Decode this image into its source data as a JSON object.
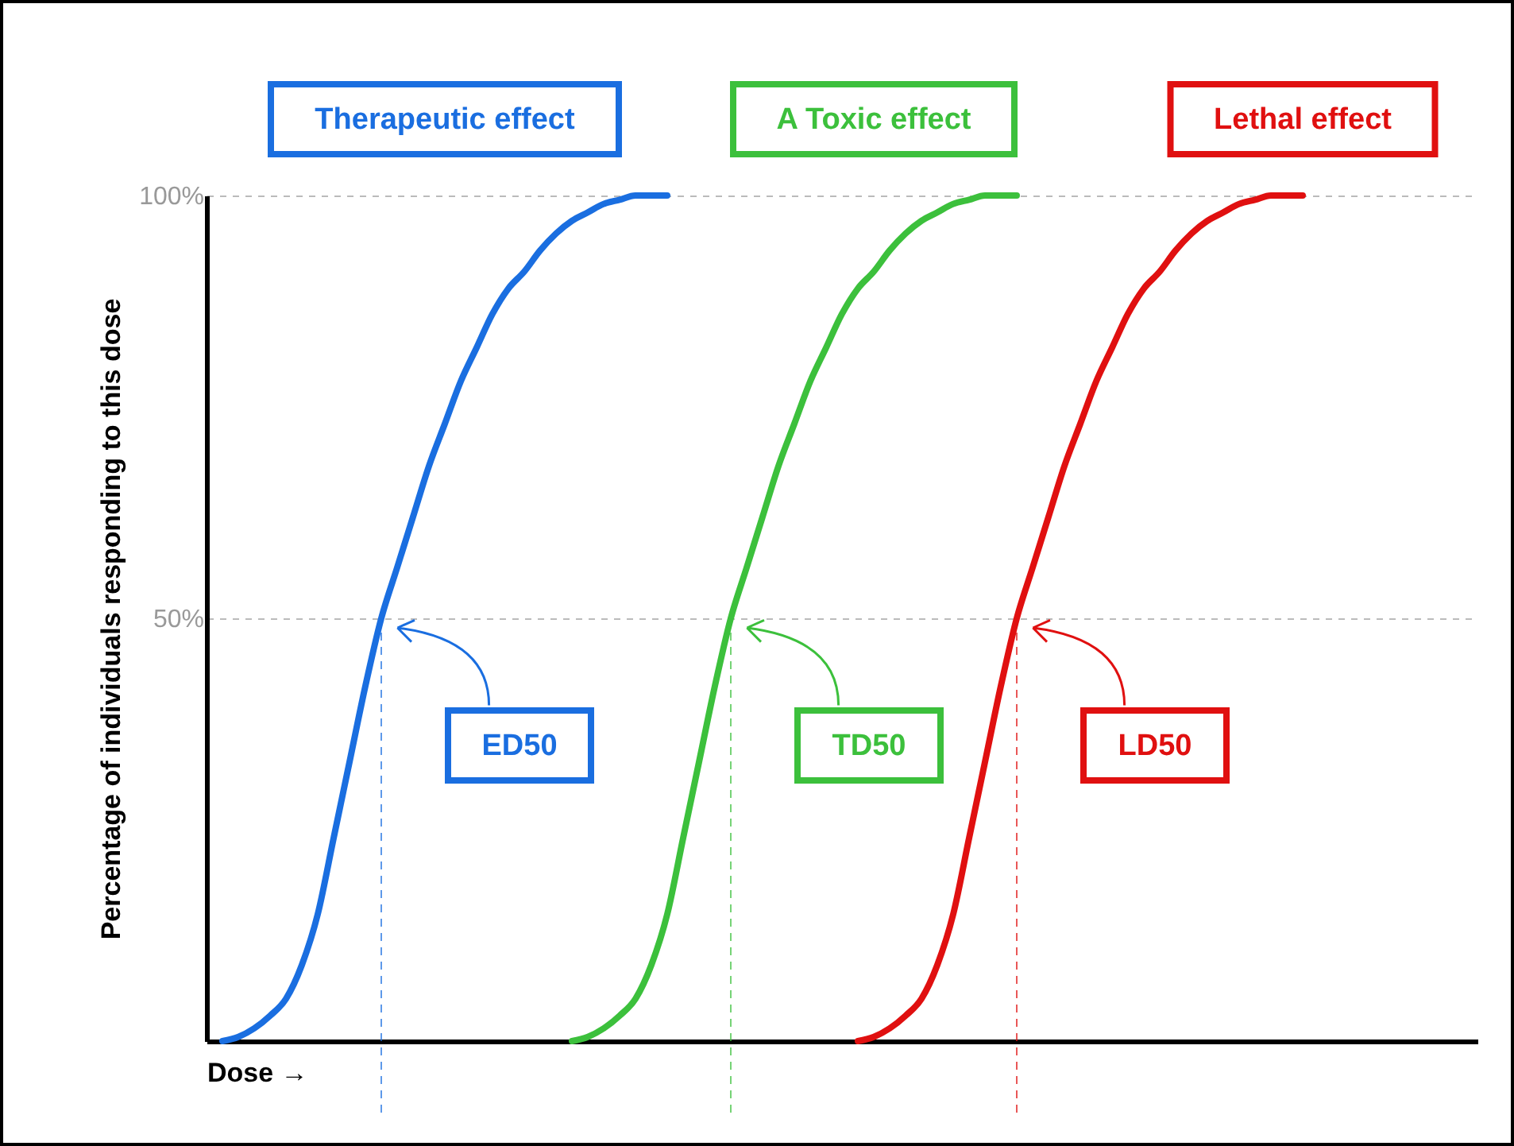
{
  "chart_data": {
    "type": "line",
    "xlabel": "Dose →",
    "ylabel": "Percentage of individuals responding to this dose",
    "categories": [
      null,
      null,
      null,
      null,
      null,
      null,
      null,
      null,
      null,
      null,
      null,
      null,
      null,
      null,
      null,
      null,
      null,
      null,
      null,
      null,
      null,
      null,
      null,
      null,
      null,
      null,
      null,
      null,
      null,
      null,
      null,
      null,
      null,
      null,
      null,
      null,
      null,
      null,
      null,
      null,
      null,
      null,
      null,
      null,
      null,
      null,
      null,
      null,
      null,
      null,
      null,
      null,
      null,
      null,
      null,
      null,
      null,
      null,
      null,
      null,
      null,
      null,
      null,
      null,
      null,
      null,
      null,
      null,
      null,
      null,
      null,
      null,
      null,
      null,
      null,
      null,
      null,
      null,
      null,
      null,
      null
    ],
    "series": [
      {
        "name": "Therapeutic effect",
        "color": "#1a6ee0",
        "values": [
          null,
          0,
          0.5,
          1.5,
          3,
          5,
          9,
          15,
          24,
          33,
          42,
          50,
          56,
          62,
          68,
          73,
          78,
          82,
          86,
          89,
          91,
          93.5,
          95.5,
          97,
          98,
          99,
          99.5,
          100,
          100,
          100,
          null,
          null,
          null,
          null,
          null,
          null,
          null,
          null,
          null,
          null,
          null,
          null,
          null,
          null,
          null,
          null,
          null,
          null,
          null,
          null,
          null,
          null,
          null,
          null,
          null,
          null,
          null,
          null,
          null,
          null,
          null,
          null,
          null,
          null,
          null,
          null,
          null,
          null,
          null,
          null,
          null,
          null,
          null,
          null,
          null,
          null,
          null,
          null,
          null,
          null,
          null
        ]
      },
      {
        "name": "A Toxic effect",
        "color": "#3cc03c",
        "values": [
          null,
          null,
          null,
          null,
          null,
          null,
          null,
          null,
          null,
          null,
          null,
          null,
          null,
          null,
          null,
          null,
          null,
          null,
          null,
          null,
          null,
          null,
          null,
          0,
          0.5,
          1.5,
          3,
          5,
          9,
          15,
          24,
          33,
          42,
          50,
          56,
          62,
          68,
          73,
          78,
          82,
          86,
          89,
          91,
          93.5,
          95.5,
          97,
          98,
          99,
          99.5,
          100,
          100,
          100,
          null,
          null,
          null,
          null,
          null,
          null,
          null,
          null,
          null,
          null,
          null,
          null,
          null,
          null,
          null,
          null,
          null,
          null,
          null,
          null,
          null,
          null,
          null,
          null,
          null,
          null,
          null,
          null,
          null
        ]
      },
      {
        "name": "Lethal effect",
        "color": "#e01010",
        "values": [
          null,
          null,
          null,
          null,
          null,
          null,
          null,
          null,
          null,
          null,
          null,
          null,
          null,
          null,
          null,
          null,
          null,
          null,
          null,
          null,
          null,
          null,
          null,
          null,
          null,
          null,
          null,
          null,
          null,
          null,
          null,
          null,
          null,
          null,
          null,
          null,
          null,
          null,
          null,
          null,
          null,
          0,
          0.5,
          1.5,
          3,
          5,
          9,
          15,
          24,
          33,
          42,
          50,
          56,
          62,
          68,
          73,
          78,
          82,
          86,
          89,
          91,
          93.5,
          95.5,
          97,
          98,
          99,
          99.5,
          100,
          100,
          100,
          null,
          null,
          null,
          null,
          null,
          null,
          null,
          null,
          null,
          null,
          null
        ]
      }
    ],
    "ylim": [
      0,
      100
    ],
    "yticks": [
      {
        "value": 50,
        "label": "50%"
      },
      {
        "value": 100,
        "label": "100%"
      }
    ],
    "grid": "y",
    "tick_labels": "y",
    "annotations": [
      "ED50",
      "TD50",
      "LD50"
    ]
  }
}
